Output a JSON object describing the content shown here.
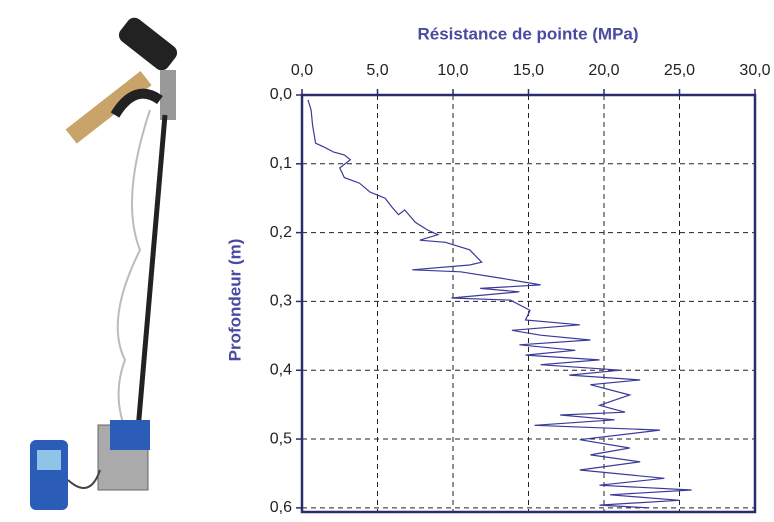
{
  "chart_data": {
    "type": "line",
    "title": "Résistance de pointe (MPa)",
    "y_label": "Profondeur (m)",
    "xlim": [
      0,
      30
    ],
    "ylim": [
      0,
      0.606
    ],
    "y_inverted": true,
    "x_axis_position": "top",
    "xticks": [
      {
        "value": 0,
        "label": "0,0"
      },
      {
        "value": 5,
        "label": "5,0"
      },
      {
        "value": 10,
        "label": "10,0"
      },
      {
        "value": 15,
        "label": "15,0"
      },
      {
        "value": 20,
        "label": "20,0"
      },
      {
        "value": 25,
        "label": "25,0"
      },
      {
        "value": 30,
        "label": "30,0"
      }
    ],
    "yticks": [
      {
        "value": 0,
        "label": "0,0"
      },
      {
        "value": 0.1,
        "label": "0,1"
      },
      {
        "value": 0.2,
        "label": "0,2"
      },
      {
        "value": 0.3,
        "label": "0,3"
      },
      {
        "value": 0.4,
        "label": "0,4"
      },
      {
        "value": 0.5,
        "label": "0,5"
      },
      {
        "value": 0.6,
        "label": "0,6"
      }
    ],
    "grid": true,
    "series": [
      {
        "color": "#3a3a9a",
        "x": [
          0.4,
          0.6,
          0.7,
          0.9,
          1.5,
          2.1,
          2.8,
          3.2,
          2.5,
          2.8,
          3.8,
          4.5,
          5.5,
          6.0,
          6.4,
          6.8,
          7.5,
          8.3,
          9.0,
          7.8,
          9.5,
          11.1,
          11.9,
          11.1,
          7.3,
          10.5,
          13.1,
          15.8,
          11.8,
          14.4,
          9.9,
          13.8,
          15.1,
          14.8,
          18.4,
          13.9,
          15.8,
          19.1,
          14.4,
          18.1,
          14.8,
          19.7,
          15.8,
          21.1,
          17.7,
          22.4,
          19.1,
          21.7,
          19.7,
          21.4,
          17.1,
          20.7,
          15.4,
          23.7,
          18.4,
          21.7,
          19.1,
          22.4,
          18.4,
          24.0,
          19.7,
          25.8,
          20.4,
          25.0,
          19.7,
          23.0
        ],
        "y": [
          0.007,
          0.022,
          0.044,
          0.07,
          0.076,
          0.083,
          0.087,
          0.094,
          0.106,
          0.12,
          0.128,
          0.141,
          0.15,
          0.164,
          0.174,
          0.167,
          0.185,
          0.196,
          0.203,
          0.211,
          0.214,
          0.225,
          0.243,
          0.247,
          0.254,
          0.257,
          0.266,
          0.276,
          0.281,
          0.286,
          0.295,
          0.298,
          0.313,
          0.327,
          0.334,
          0.342,
          0.349,
          0.356,
          0.363,
          0.371,
          0.378,
          0.385,
          0.392,
          0.4,
          0.407,
          0.414,
          0.421,
          0.436,
          0.451,
          0.461,
          0.465,
          0.472,
          0.48,
          0.487,
          0.501,
          0.513,
          0.523,
          0.533,
          0.545,
          0.557,
          0.567,
          0.574,
          0.581,
          0.589,
          0.596,
          0.6
        ]
      }
    ]
  }
}
